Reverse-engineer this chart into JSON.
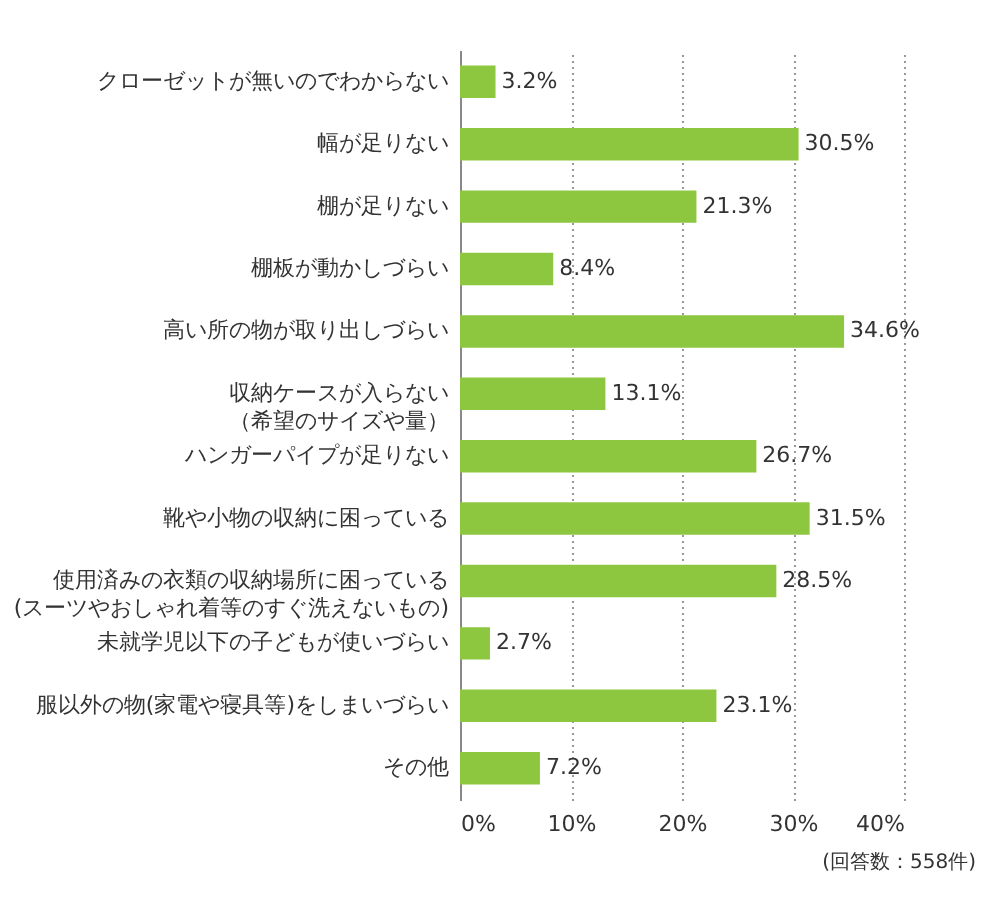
{
  "chart_data": {
    "type": "bar",
    "orientation": "horizontal",
    "categories": [
      "クローゼットが無いのでわからない",
      "幅が足りない",
      "棚が足りない",
      "棚板が動かしづらい",
      "高い所の物が取り出しづらい",
      "収納ケースが入らない（希望のサイズや量）",
      "ハンガーパイプが足りない",
      "靴や小物の収納に困っている",
      "使用済みの衣類の収納場所に困っている(スーツやおしゃれ着等のすぐ洗えないもの)",
      "未就学児以下の子どもが使いづらい",
      "服以外の物(家電や寝具等)をしまいづらい",
      "その他"
    ],
    "values": [
      3.2,
      30.5,
      21.3,
      8.4,
      34.6,
      13.1,
      26.7,
      31.5,
      28.5,
      2.7,
      23.1,
      7.2
    ],
    "value_labels": [
      "3.2%",
      "30.5%",
      "21.3%",
      "8.4%",
      "34.6%",
      "13.1%",
      "26.7%",
      "31.5%",
      "28.5%",
      "2.7%",
      "23.1%",
      "7.2%"
    ],
    "color": "#8dc63f",
    "xlim": [
      0,
      40
    ],
    "xticks": [
      {
        "value": 0,
        "label": "0%"
      },
      {
        "value": 10,
        "label": "10%"
      },
      {
        "value": 20,
        "label": "20%"
      },
      {
        "value": 30,
        "label": "30%"
      },
      {
        "value": 40,
        "label": "40%"
      }
    ],
    "grid": "x",
    "annotations": [
      "(回答数：558件)"
    ]
  }
}
